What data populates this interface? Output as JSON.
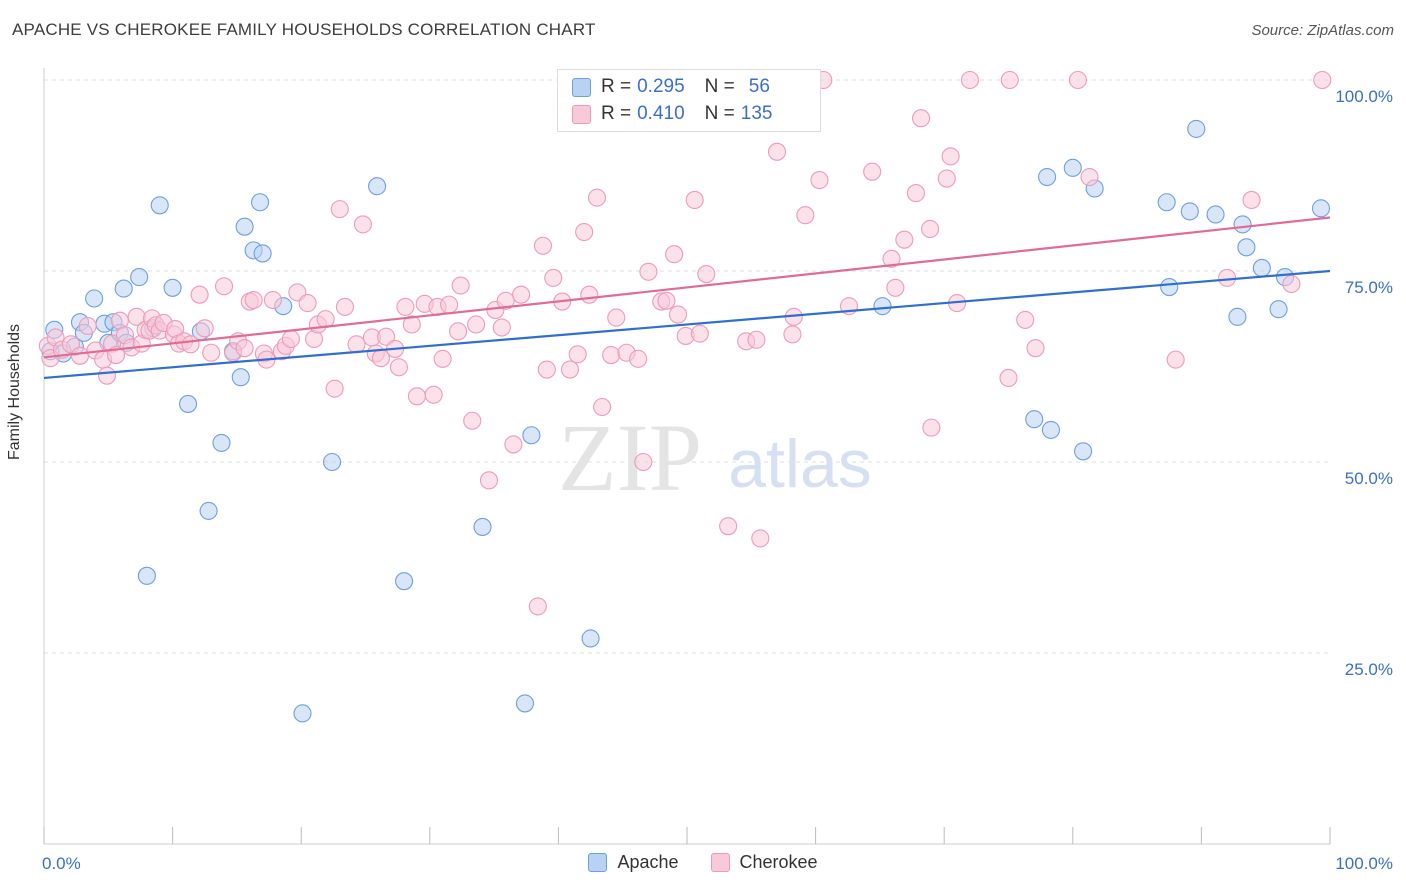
{
  "title": "APACHE VS CHEROKEE FAMILY HOUSEHOLDS CORRELATION CHART",
  "source": "Source: ZipAtlas.com",
  "watermark": {
    "zip": "ZIP",
    "atlas": "atlas"
  },
  "legend_top": [
    {
      "r_label": "R =",
      "r_value": "0.295",
      "n_label": "N =",
      "n_value": "56"
    },
    {
      "r_label": "R =",
      "r_value": "0.410",
      "n_label": "N =",
      "n_value": "135"
    }
  ],
  "chart_data": {
    "type": "scatter",
    "title": "APACHE VS CHEROKEE FAMILY HOUSEHOLDS CORRELATION CHART",
    "xlabel": "",
    "ylabel": "Family Households",
    "xlim": [
      0,
      100
    ],
    "ylim": [
      0,
      100
    ],
    "x_tick_labels": [
      "0.0%",
      "100.0%"
    ],
    "y_tick_labels": [
      "25.0%",
      "50.0%",
      "75.0%",
      "100.0%"
    ],
    "y_ticks": [
      25,
      50,
      75,
      100
    ],
    "grid": true,
    "legend_position": "bottom-center",
    "series": [
      {
        "name": "Apache",
        "color": "#6e9fe0",
        "fill": "#b9d1f2",
        "trend_color": "#2f6fd1",
        "trend": [
          [
            0,
            61.0
          ],
          [
            100,
            75.0
          ]
        ],
        "r": 0.295,
        "n": 56,
        "points": [
          [
            0.5,
            64.5
          ],
          [
            0.8,
            67.3
          ],
          [
            1.5,
            64.2
          ],
          [
            2.4,
            65.1
          ],
          [
            2.8,
            68.3
          ],
          [
            3.1,
            66.9
          ],
          [
            3.9,
            71.4
          ],
          [
            4.7,
            68.1
          ],
          [
            5.0,
            65.6
          ],
          [
            5.4,
            68.3
          ],
          [
            5.9,
            66.9
          ],
          [
            6.2,
            72.7
          ],
          [
            6.4,
            65.6
          ],
          [
            7.4,
            74.2
          ],
          [
            8.0,
            35.1
          ],
          [
            8.5,
            67.5
          ],
          [
            9.0,
            83.6
          ],
          [
            10.0,
            72.8
          ],
          [
            11.2,
            57.6
          ],
          [
            12.2,
            67.1
          ],
          [
            12.8,
            43.6
          ],
          [
            13.8,
            52.5
          ],
          [
            14.7,
            64.5
          ],
          [
            15.3,
            61.1
          ],
          [
            15.6,
            80.8
          ],
          [
            16.3,
            77.7
          ],
          [
            16.8,
            84.0
          ],
          [
            17.0,
            77.3
          ],
          [
            18.6,
            70.4
          ],
          [
            20.1,
            17.1
          ],
          [
            22.4,
            50.0
          ],
          [
            25.9,
            86.1
          ],
          [
            28.0,
            34.4
          ],
          [
            34.1,
            41.5
          ],
          [
            37.4,
            18.4
          ],
          [
            37.9,
            53.5
          ],
          [
            42.5,
            26.9
          ],
          [
            65.2,
            70.4
          ],
          [
            77.0,
            55.6
          ],
          [
            78.0,
            87.3
          ],
          [
            78.3,
            54.2
          ],
          [
            80.0,
            88.5
          ],
          [
            80.8,
            51.4
          ],
          [
            81.7,
            85.8
          ],
          [
            87.3,
            84.0
          ],
          [
            87.5,
            72.9
          ],
          [
            89.1,
            82.8
          ],
          [
            89.6,
            93.6
          ],
          [
            91.1,
            82.4
          ],
          [
            92.8,
            69.0
          ],
          [
            93.2,
            81.1
          ],
          [
            93.5,
            78.1
          ],
          [
            94.7,
            75.4
          ],
          [
            96.5,
            74.2
          ],
          [
            99.3,
            83.2
          ],
          [
            96.0,
            70.0
          ]
        ]
      },
      {
        "name": "Cherokee",
        "color": "#ee9bb7",
        "fill": "#f8c9d8",
        "trend_color": "#e06c96",
        "trend": [
          [
            0,
            63.7
          ],
          [
            100,
            82.0
          ]
        ],
        "r": 0.41,
        "n": 135,
        "points": [
          [
            0.3,
            65.2
          ],
          [
            0.5,
            63.6
          ],
          [
            0.9,
            66.3
          ],
          [
            1.4,
            64.7
          ],
          [
            2.1,
            65.4
          ],
          [
            2.8,
            63.9
          ],
          [
            3.4,
            67.8
          ],
          [
            4.0,
            64.6
          ],
          [
            4.6,
            63.4
          ],
          [
            4.9,
            61.3
          ],
          [
            5.3,
            65.5
          ],
          [
            5.6,
            64.0
          ],
          [
            5.9,
            68.5
          ],
          [
            6.3,
            66.6
          ],
          [
            6.8,
            65.0
          ],
          [
            7.2,
            69.0
          ],
          [
            7.6,
            65.5
          ],
          [
            7.9,
            67.3
          ],
          [
            8.2,
            67.2
          ],
          [
            8.4,
            68.8
          ],
          [
            8.7,
            67.9
          ],
          [
            9.0,
            67.2
          ],
          [
            9.3,
            68.2
          ],
          [
            10.1,
            66.7
          ],
          [
            10.2,
            67.4
          ],
          [
            10.5,
            65.5
          ],
          [
            10.9,
            65.8
          ],
          [
            11.4,
            65.4
          ],
          [
            12.1,
            71.9
          ],
          [
            12.5,
            67.5
          ],
          [
            13.0,
            64.3
          ],
          [
            14.0,
            73.0
          ],
          [
            14.7,
            64.3
          ],
          [
            15.1,
            65.8
          ],
          [
            15.6,
            64.9
          ],
          [
            16.0,
            71.0
          ],
          [
            16.3,
            71.2
          ],
          [
            17.1,
            64.2
          ],
          [
            17.3,
            63.4
          ],
          [
            17.8,
            71.2
          ],
          [
            18.5,
            64.5
          ],
          [
            18.8,
            65.2
          ],
          [
            19.2,
            66.1
          ],
          [
            19.7,
            72.2
          ],
          [
            20.5,
            70.8
          ],
          [
            21.0,
            66.1
          ],
          [
            21.3,
            68.0
          ],
          [
            21.9,
            68.7
          ],
          [
            22.6,
            59.6
          ],
          [
            23.0,
            83.1
          ],
          [
            23.4,
            70.3
          ],
          [
            24.3,
            65.4
          ],
          [
            24.8,
            81.1
          ],
          [
            25.5,
            66.3
          ],
          [
            25.8,
            64.2
          ],
          [
            26.2,
            63.6
          ],
          [
            26.6,
            66.4
          ],
          [
            27.3,
            64.8
          ],
          [
            27.6,
            62.4
          ],
          [
            28.1,
            70.3
          ],
          [
            28.6,
            68.0
          ],
          [
            29.0,
            58.6
          ],
          [
            29.6,
            70.7
          ],
          [
            30.3,
            58.8
          ],
          [
            30.6,
            70.3
          ],
          [
            31.0,
            63.5
          ],
          [
            31.5,
            70.6
          ],
          [
            32.2,
            67.1
          ],
          [
            32.4,
            73.1
          ],
          [
            33.3,
            55.4
          ],
          [
            33.6,
            68.0
          ],
          [
            34.6,
            47.6
          ],
          [
            35.1,
            69.9
          ],
          [
            35.6,
            67.6
          ],
          [
            35.9,
            71.1
          ],
          [
            36.5,
            52.3
          ],
          [
            37.1,
            71.9
          ],
          [
            38.4,
            31.1
          ],
          [
            38.8,
            78.3
          ],
          [
            39.1,
            62.1
          ],
          [
            39.6,
            74.1
          ],
          [
            40.3,
            71.0
          ],
          [
            40.9,
            62.1
          ],
          [
            41.5,
            64.1
          ],
          [
            42.0,
            80.1
          ],
          [
            42.4,
            71.9
          ],
          [
            43.0,
            84.6
          ],
          [
            43.4,
            57.2
          ],
          [
            44.1,
            64.0
          ],
          [
            44.5,
            68.9
          ],
          [
            45.3,
            64.3
          ],
          [
            46.2,
            63.5
          ],
          [
            46.6,
            50.0
          ],
          [
            47.0,
            74.9
          ],
          [
            48.0,
            71.0
          ],
          [
            48.4,
            71.1
          ],
          [
            49.0,
            77.2
          ],
          [
            49.3,
            69.3
          ],
          [
            49.9,
            66.5
          ],
          [
            50.6,
            84.3
          ],
          [
            51.0,
            66.8
          ],
          [
            51.5,
            74.6
          ],
          [
            53.2,
            41.6
          ],
          [
            54.6,
            65.8
          ],
          [
            55.4,
            66.0
          ],
          [
            55.7,
            40.0
          ],
          [
            57.0,
            90.6
          ],
          [
            58.2,
            66.7
          ],
          [
            58.3,
            69.0
          ],
          [
            59.2,
            82.3
          ],
          [
            60.3,
            86.9
          ],
          [
            60.6,
            100.0
          ],
          [
            62.6,
            70.4
          ],
          [
            64.4,
            88.0
          ],
          [
            65.9,
            76.6
          ],
          [
            66.2,
            72.8
          ],
          [
            66.9,
            79.1
          ],
          [
            67.8,
            85.2
          ],
          [
            68.2,
            95.0
          ],
          [
            68.9,
            80.5
          ],
          [
            69.0,
            54.5
          ],
          [
            70.2,
            87.1
          ],
          [
            70.5,
            90.0
          ],
          [
            71.0,
            70.8
          ],
          [
            72.0,
            100.0
          ],
          [
            75.0,
            61.0
          ],
          [
            75.1,
            100.0
          ],
          [
            76.3,
            68.6
          ],
          [
            77.1,
            64.9
          ],
          [
            80.4,
            100.0
          ],
          [
            81.3,
            87.3
          ],
          [
            88.0,
            63.4
          ],
          [
            92.0,
            74.1
          ],
          [
            93.9,
            84.3
          ],
          [
            97.0,
            73.3
          ],
          [
            99.4,
            100.0
          ]
        ]
      }
    ]
  }
}
